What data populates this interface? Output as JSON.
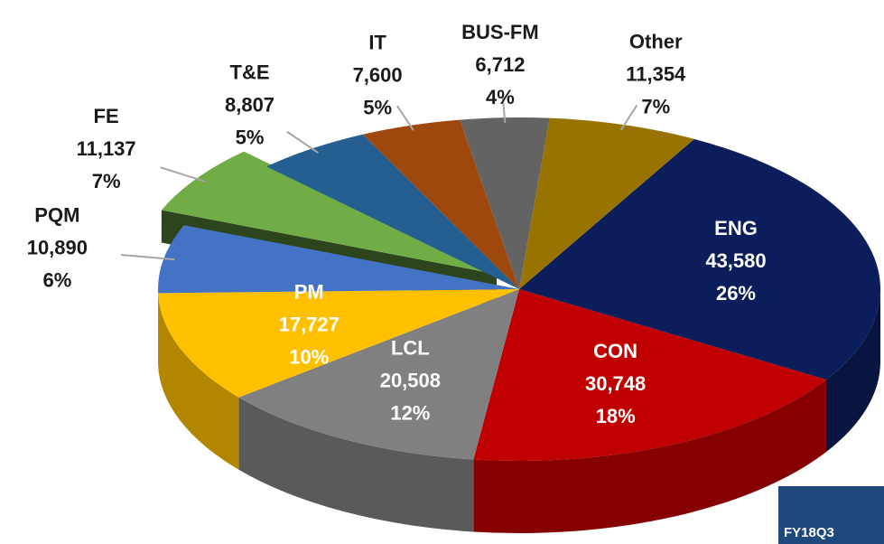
{
  "chart_data": {
    "type": "pie",
    "categories": [
      "ENG",
      "CON",
      "LCL",
      "PM",
      "PQM",
      "FE",
      "T&E",
      "IT",
      "BUS-FM",
      "Other"
    ],
    "values": [
      43580,
      30748,
      20508,
      17727,
      10890,
      11137,
      8807,
      7600,
      6712,
      11354
    ],
    "value_labels": [
      "43,580",
      "30,748",
      "20,508",
      "17,727",
      "10,890",
      "11,137",
      "8,807",
      "7,600",
      "6,712",
      "11,354"
    ],
    "percent_labels": [
      "26%",
      "18%",
      "12%",
      "10%",
      "6%",
      "7%",
      "5%",
      "5%",
      "4%",
      "7%"
    ],
    "colors": [
      "#0b1e5b",
      "#c00000",
      "#808080",
      "#ffc000",
      "#4472c4",
      "#70ad47",
      "#255e91",
      "#9e480e",
      "#636363",
      "#997300"
    ],
    "exploded": [
      "FE"
    ],
    "annotation": "FY18Q3"
  }
}
